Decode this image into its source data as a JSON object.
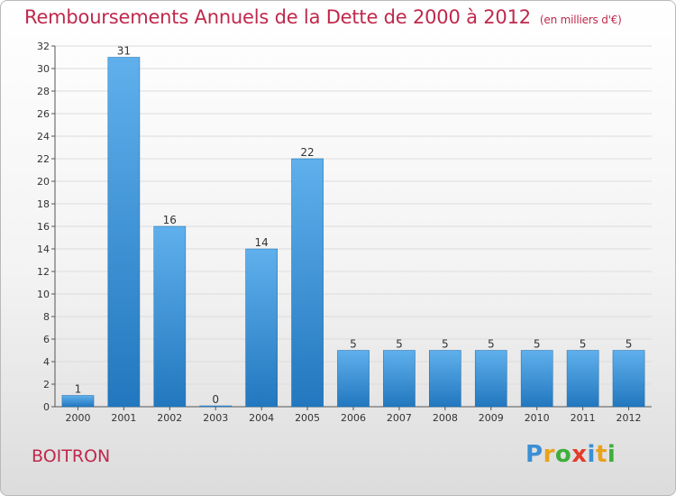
{
  "title": "Remboursements Annuels de la Dette de 2000 à 2012",
  "title_unit": "(en milliers d'€)",
  "commune": "BOITRON",
  "logo": {
    "text": "Proxiti",
    "letters": [
      {
        "ch": "P",
        "color": "#3b8fd4"
      },
      {
        "ch": "r",
        "color": "#e8a21c"
      },
      {
        "ch": "o",
        "color": "#3fae3a"
      },
      {
        "ch": "x",
        "color": "#e33b2c"
      },
      {
        "ch": "i",
        "color": "#3b8fd4"
      },
      {
        "ch": "t",
        "color": "#e8a21c"
      },
      {
        "ch": "i",
        "color": "#3fae3a"
      }
    ]
  },
  "colors": {
    "title": "#c0284c",
    "bar_light": "#5fb0ec",
    "bar_dark": "#2277be",
    "grid": "#dcdcdc"
  },
  "chart_data": {
    "type": "bar",
    "categories": [
      "2000",
      "2001",
      "2002",
      "2003",
      "2004",
      "2005",
      "2006",
      "2007",
      "2008",
      "2009",
      "2010",
      "2011",
      "2012"
    ],
    "values": [
      1,
      31,
      16,
      0,
      14,
      22,
      5,
      5,
      5,
      5,
      5,
      5,
      5
    ],
    "ylim": [
      0,
      32
    ],
    "yticks": [
      0,
      2,
      4,
      6,
      8,
      10,
      12,
      14,
      16,
      18,
      20,
      22,
      24,
      26,
      28,
      30,
      32
    ],
    "grid": true,
    "data_labels": true
  }
}
